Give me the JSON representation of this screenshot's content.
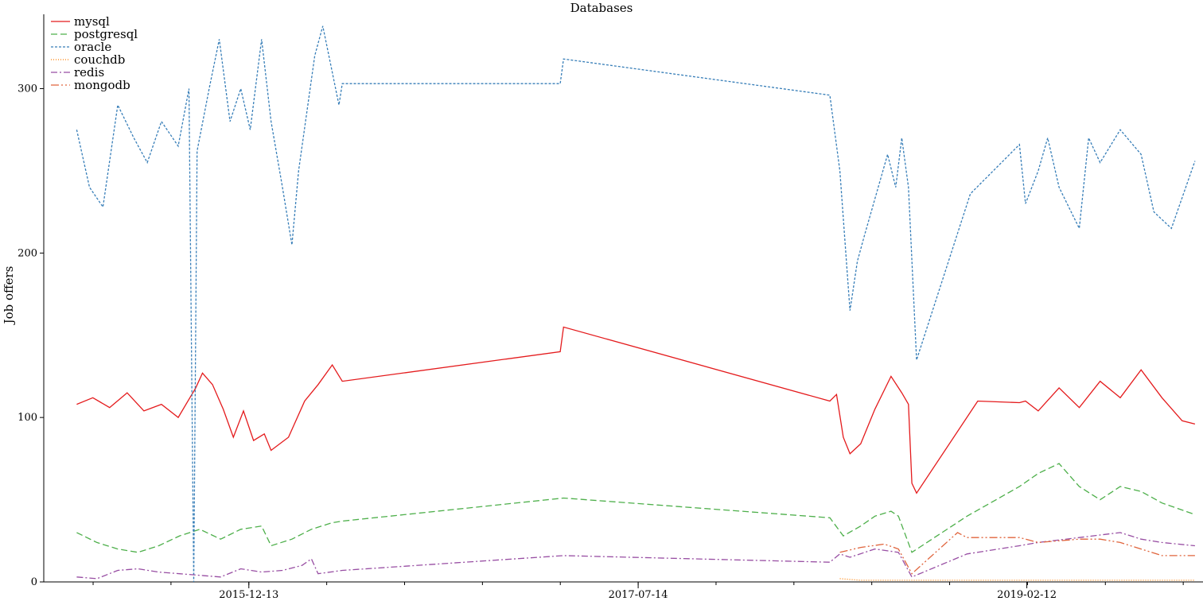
{
  "chart_data": {
    "type": "line",
    "title": "Databases",
    "xlabel": "",
    "ylabel": "Job offers",
    "ylim": [
      0,
      340
    ],
    "x_tick_labels": [
      "2015-12-13",
      "2017-07-14",
      "2019-02-12"
    ],
    "y_tick_labels": [
      "0",
      "100",
      "200",
      "300"
    ],
    "grid": false,
    "legend_position": "top-left",
    "series": [
      {
        "name": "mysql",
        "color": "#e41a1c",
        "dash": "solid",
        "points": [
          [
            "2015-04-01",
            108
          ],
          [
            "2015-04-25",
            112
          ],
          [
            "2015-05-20",
            106
          ],
          [
            "2015-06-15",
            115
          ],
          [
            "2015-07-10",
            104
          ],
          [
            "2015-08-05",
            108
          ],
          [
            "2015-08-30",
            100
          ],
          [
            "2015-09-25",
            118
          ],
          [
            "2015-10-05",
            127
          ],
          [
            "2015-10-20",
            120
          ],
          [
            "2015-11-05",
            105
          ],
          [
            "2015-11-20",
            88
          ],
          [
            "2015-12-05",
            104
          ],
          [
            "2015-12-20",
            86
          ],
          [
            "2016-01-05",
            90
          ],
          [
            "2016-01-15",
            80
          ],
          [
            "2016-02-10",
            88
          ],
          [
            "2016-03-05",
            110
          ],
          [
            "2016-03-25",
            120
          ],
          [
            "2016-04-15",
            132
          ],
          [
            "2016-04-30",
            122
          ],
          [
            "2017-03-20",
            140
          ],
          [
            "2017-03-25",
            155
          ],
          [
            "2018-04-25",
            110
          ],
          [
            "2018-05-05",
            114
          ],
          [
            "2018-05-15",
            88
          ],
          [
            "2018-05-25",
            78
          ],
          [
            "2018-06-10",
            84
          ],
          [
            "2018-07-01",
            105
          ],
          [
            "2018-07-25",
            125
          ],
          [
            "2018-08-10",
            115
          ],
          [
            "2018-08-20",
            108
          ],
          [
            "2018-08-25",
            60
          ],
          [
            "2018-09-01",
            54
          ],
          [
            "2018-12-01",
            110
          ],
          [
            "2019-02-01",
            109
          ],
          [
            "2019-02-10",
            110
          ],
          [
            "2019-03-01",
            104
          ],
          [
            "2019-04-01",
            118
          ],
          [
            "2019-05-01",
            106
          ],
          [
            "2019-06-01",
            122
          ],
          [
            "2019-07-01",
            112
          ],
          [
            "2019-08-01",
            129
          ],
          [
            "2019-09-01",
            112
          ],
          [
            "2019-10-01",
            98
          ],
          [
            "2019-10-20",
            96
          ]
        ]
      },
      {
        "name": "postgresql",
        "color": "#4daf4a",
        "dash": "8,4",
        "points": [
          [
            "2015-04-01",
            30
          ],
          [
            "2015-05-01",
            24
          ],
          [
            "2015-06-01",
            20
          ],
          [
            "2015-07-01",
            18
          ],
          [
            "2015-08-01",
            22
          ],
          [
            "2015-09-01",
            28
          ],
          [
            "2015-10-01",
            32
          ],
          [
            "2015-11-01",
            26
          ],
          [
            "2015-12-01",
            32
          ],
          [
            "2016-01-01",
            34
          ],
          [
            "2016-01-15",
            22
          ],
          [
            "2016-02-15",
            26
          ],
          [
            "2016-03-15",
            32
          ],
          [
            "2016-04-15",
            36
          ],
          [
            "2016-04-30",
            37
          ],
          [
            "2017-03-25",
            51
          ],
          [
            "2018-04-25",
            39
          ],
          [
            "2018-05-15",
            28
          ],
          [
            "2018-06-10",
            34
          ],
          [
            "2018-07-01",
            40
          ],
          [
            "2018-07-25",
            43
          ],
          [
            "2018-08-05",
            40
          ],
          [
            "2018-08-25",
            18
          ],
          [
            "2018-11-15",
            40
          ],
          [
            "2019-02-01",
            58
          ],
          [
            "2019-03-01",
            66
          ],
          [
            "2019-04-01",
            72
          ],
          [
            "2019-05-01",
            58
          ],
          [
            "2019-06-01",
            50
          ],
          [
            "2019-07-01",
            58
          ],
          [
            "2019-08-01",
            55
          ],
          [
            "2019-09-01",
            48
          ],
          [
            "2019-10-20",
            41
          ]
        ]
      },
      {
        "name": "oracle",
        "color": "#377eb8",
        "dash": "3,2",
        "points": [
          [
            "2015-04-01",
            275
          ],
          [
            "2015-04-20",
            240
          ],
          [
            "2015-05-10",
            228
          ],
          [
            "2015-06-01",
            290
          ],
          [
            "2015-06-25",
            270
          ],
          [
            "2015-07-15",
            255
          ],
          [
            "2015-08-05",
            280
          ],
          [
            "2015-08-30",
            265
          ],
          [
            "2015-09-15",
            300
          ],
          [
            "2015-09-22",
            0
          ],
          [
            "2015-09-27",
            262
          ],
          [
            "2015-10-15",
            300
          ],
          [
            "2015-10-30",
            330
          ],
          [
            "2015-11-15",
            280
          ],
          [
            "2015-12-01",
            300
          ],
          [
            "2015-12-15",
            275
          ],
          [
            "2016-01-01",
            330
          ],
          [
            "2016-01-15",
            280
          ],
          [
            "2016-02-01",
            240
          ],
          [
            "2016-02-15",
            205
          ],
          [
            "2016-02-25",
            250
          ],
          [
            "2016-03-20",
            320
          ],
          [
            "2016-04-01",
            338
          ],
          [
            "2016-04-15",
            310
          ],
          [
            "2016-04-25",
            290
          ],
          [
            "2016-04-30",
            303
          ],
          [
            "2017-03-20",
            303
          ],
          [
            "2017-03-25",
            318
          ],
          [
            "2018-04-25",
            296
          ],
          [
            "2018-05-10",
            250
          ],
          [
            "2018-05-25",
            165
          ],
          [
            "2018-06-05",
            195
          ],
          [
            "2018-06-15",
            210
          ],
          [
            "2018-07-20",
            260
          ],
          [
            "2018-08-01",
            240
          ],
          [
            "2018-08-10",
            270
          ],
          [
            "2018-08-20",
            240
          ],
          [
            "2018-09-01",
            135
          ],
          [
            "2018-11-20",
            236
          ],
          [
            "2019-02-01",
            266
          ],
          [
            "2019-02-10",
            230
          ],
          [
            "2019-03-01",
            250
          ],
          [
            "2019-03-15",
            270
          ],
          [
            "2019-04-01",
            240
          ],
          [
            "2019-05-01",
            215
          ],
          [
            "2019-05-15",
            270
          ],
          [
            "2019-06-01",
            255
          ],
          [
            "2019-07-01",
            275
          ],
          [
            "2019-08-01",
            260
          ],
          [
            "2019-08-20",
            225
          ],
          [
            "2019-09-15",
            215
          ],
          [
            "2019-10-20",
            256
          ]
        ]
      },
      {
        "name": "couchdb",
        "color": "#ff7f00",
        "dash": "1,2",
        "points": [
          [
            "2018-05-10",
            2
          ],
          [
            "2018-06-10",
            1
          ],
          [
            "2018-08-10",
            1
          ],
          [
            "2018-09-01",
            1
          ],
          [
            "2019-01-01",
            1
          ],
          [
            "2019-05-01",
            1
          ],
          [
            "2019-10-20",
            1
          ]
        ]
      },
      {
        "name": "redis",
        "color": "#984ea3",
        "dash": "8,3,2,3",
        "points": [
          [
            "2015-04-01",
            3
          ],
          [
            "2015-05-01",
            2
          ],
          [
            "2015-06-01",
            7
          ],
          [
            "2015-07-01",
            8
          ],
          [
            "2015-08-01",
            6
          ],
          [
            "2015-09-01",
            5
          ],
          [
            "2015-10-01",
            4
          ],
          [
            "2015-11-01",
            3
          ],
          [
            "2015-12-01",
            8
          ],
          [
            "2016-01-01",
            6
          ],
          [
            "2016-02-01",
            7
          ],
          [
            "2016-03-01",
            10
          ],
          [
            "2016-03-15",
            14
          ],
          [
            "2016-03-25",
            5
          ],
          [
            "2016-04-30",
            7
          ],
          [
            "2017-03-25",
            16
          ],
          [
            "2018-04-25",
            12
          ],
          [
            "2018-05-10",
            17
          ],
          [
            "2018-05-25",
            15
          ],
          [
            "2018-07-01",
            20
          ],
          [
            "2018-08-05",
            18
          ],
          [
            "2018-08-25",
            3
          ],
          [
            "2018-11-15",
            17
          ],
          [
            "2019-02-01",
            22
          ],
          [
            "2019-03-01",
            24
          ],
          [
            "2019-05-01",
            27
          ],
          [
            "2019-07-01",
            30
          ],
          [
            "2019-08-01",
            26
          ],
          [
            "2019-09-01",
            24
          ],
          [
            "2019-10-20",
            22
          ]
        ]
      },
      {
        "name": "mongodb",
        "color": "#e0643c",
        "dash": "10,3,2,3,2,3",
        "points": [
          [
            "2018-05-10",
            18
          ],
          [
            "2018-06-10",
            21
          ],
          [
            "2018-07-15",
            23
          ],
          [
            "2018-08-05",
            20
          ],
          [
            "2018-08-25",
            5
          ],
          [
            "2018-11-01",
            30
          ],
          [
            "2018-11-15",
            27
          ],
          [
            "2019-02-01",
            27
          ],
          [
            "2019-03-01",
            24
          ],
          [
            "2019-05-01",
            26
          ],
          [
            "2019-06-01",
            26
          ],
          [
            "2019-07-01",
            24
          ],
          [
            "2019-08-01",
            20
          ],
          [
            "2019-09-01",
            16
          ],
          [
            "2019-10-20",
            16
          ]
        ]
      }
    ]
  }
}
